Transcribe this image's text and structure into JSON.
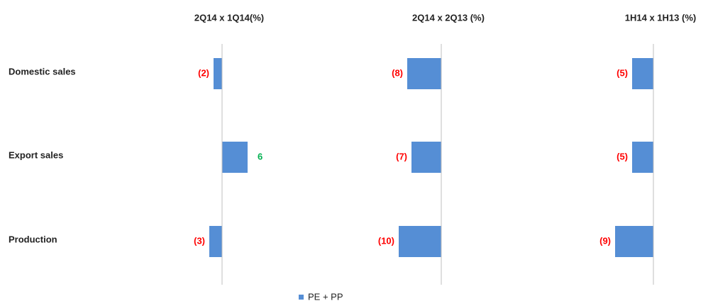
{
  "chart_data": {
    "type": "bar",
    "orientation": "horizontal",
    "categories": [
      "Domestic sales",
      "Export sales",
      "Production"
    ],
    "legend": "PE + PP",
    "color": "#558ed5",
    "negative_label_color": "#ff0000",
    "positive_label_color": "#00b050",
    "panels": [
      {
        "title": "2Q14 x 1Q14(%)",
        "values": [
          -2,
          6,
          -3
        ],
        "value_labels": [
          "(2)",
          "6",
          "(3)"
        ],
        "xlim": [
          -20,
          20
        ]
      },
      {
        "title": "2Q14 x 2Q13 (%)",
        "values": [
          -8,
          -7,
          -10
        ],
        "value_labels": [
          "(8)",
          "(7)",
          "(10)"
        ],
        "xlim": [
          -20,
          20
        ]
      },
      {
        "title": "1H14 x 1H13 (%)",
        "values": [
          -5,
          -5,
          -9
        ],
        "value_labels": [
          "(5)",
          "(5)",
          "(9)"
        ],
        "xlim": [
          -20,
          20
        ]
      }
    ]
  }
}
